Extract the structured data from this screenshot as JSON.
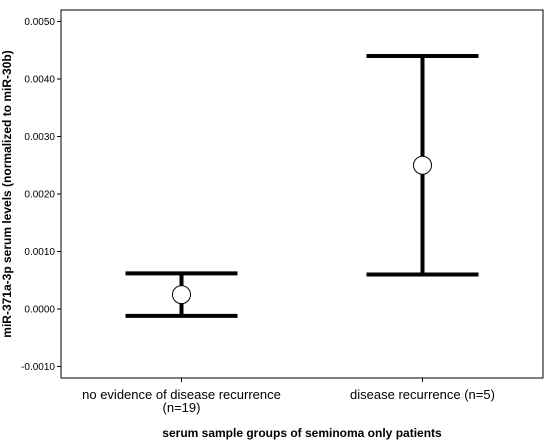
{
  "chart_data": {
    "type": "errorbar",
    "xlabel": "serum sample groups of seminoma only patients",
    "ylabel": "miR-371a-3p serum levels (normalized to miR-30b)",
    "ylim": [
      -0.0012,
      0.0052
    ],
    "yticks": [
      -0.001,
      0.0,
      0.001,
      0.002,
      0.003,
      0.004,
      0.005
    ],
    "ytick_labels": [
      "-0.0010",
      "0.0000",
      "0.0010",
      "0.0020",
      "0.0030",
      "0.0040",
      "0.0050"
    ],
    "grid": false,
    "categories": [
      {
        "label_lines": [
          "no evidence of disease recurrence",
          "(n=19)"
        ],
        "mean": 0.00025,
        "lower": -0.00012,
        "upper": 0.00062
      },
      {
        "label_lines": [
          "disease recurrence (n=5)"
        ],
        "mean": 0.0025,
        "lower": 0.0006,
        "upper": 0.0044
      }
    ]
  }
}
